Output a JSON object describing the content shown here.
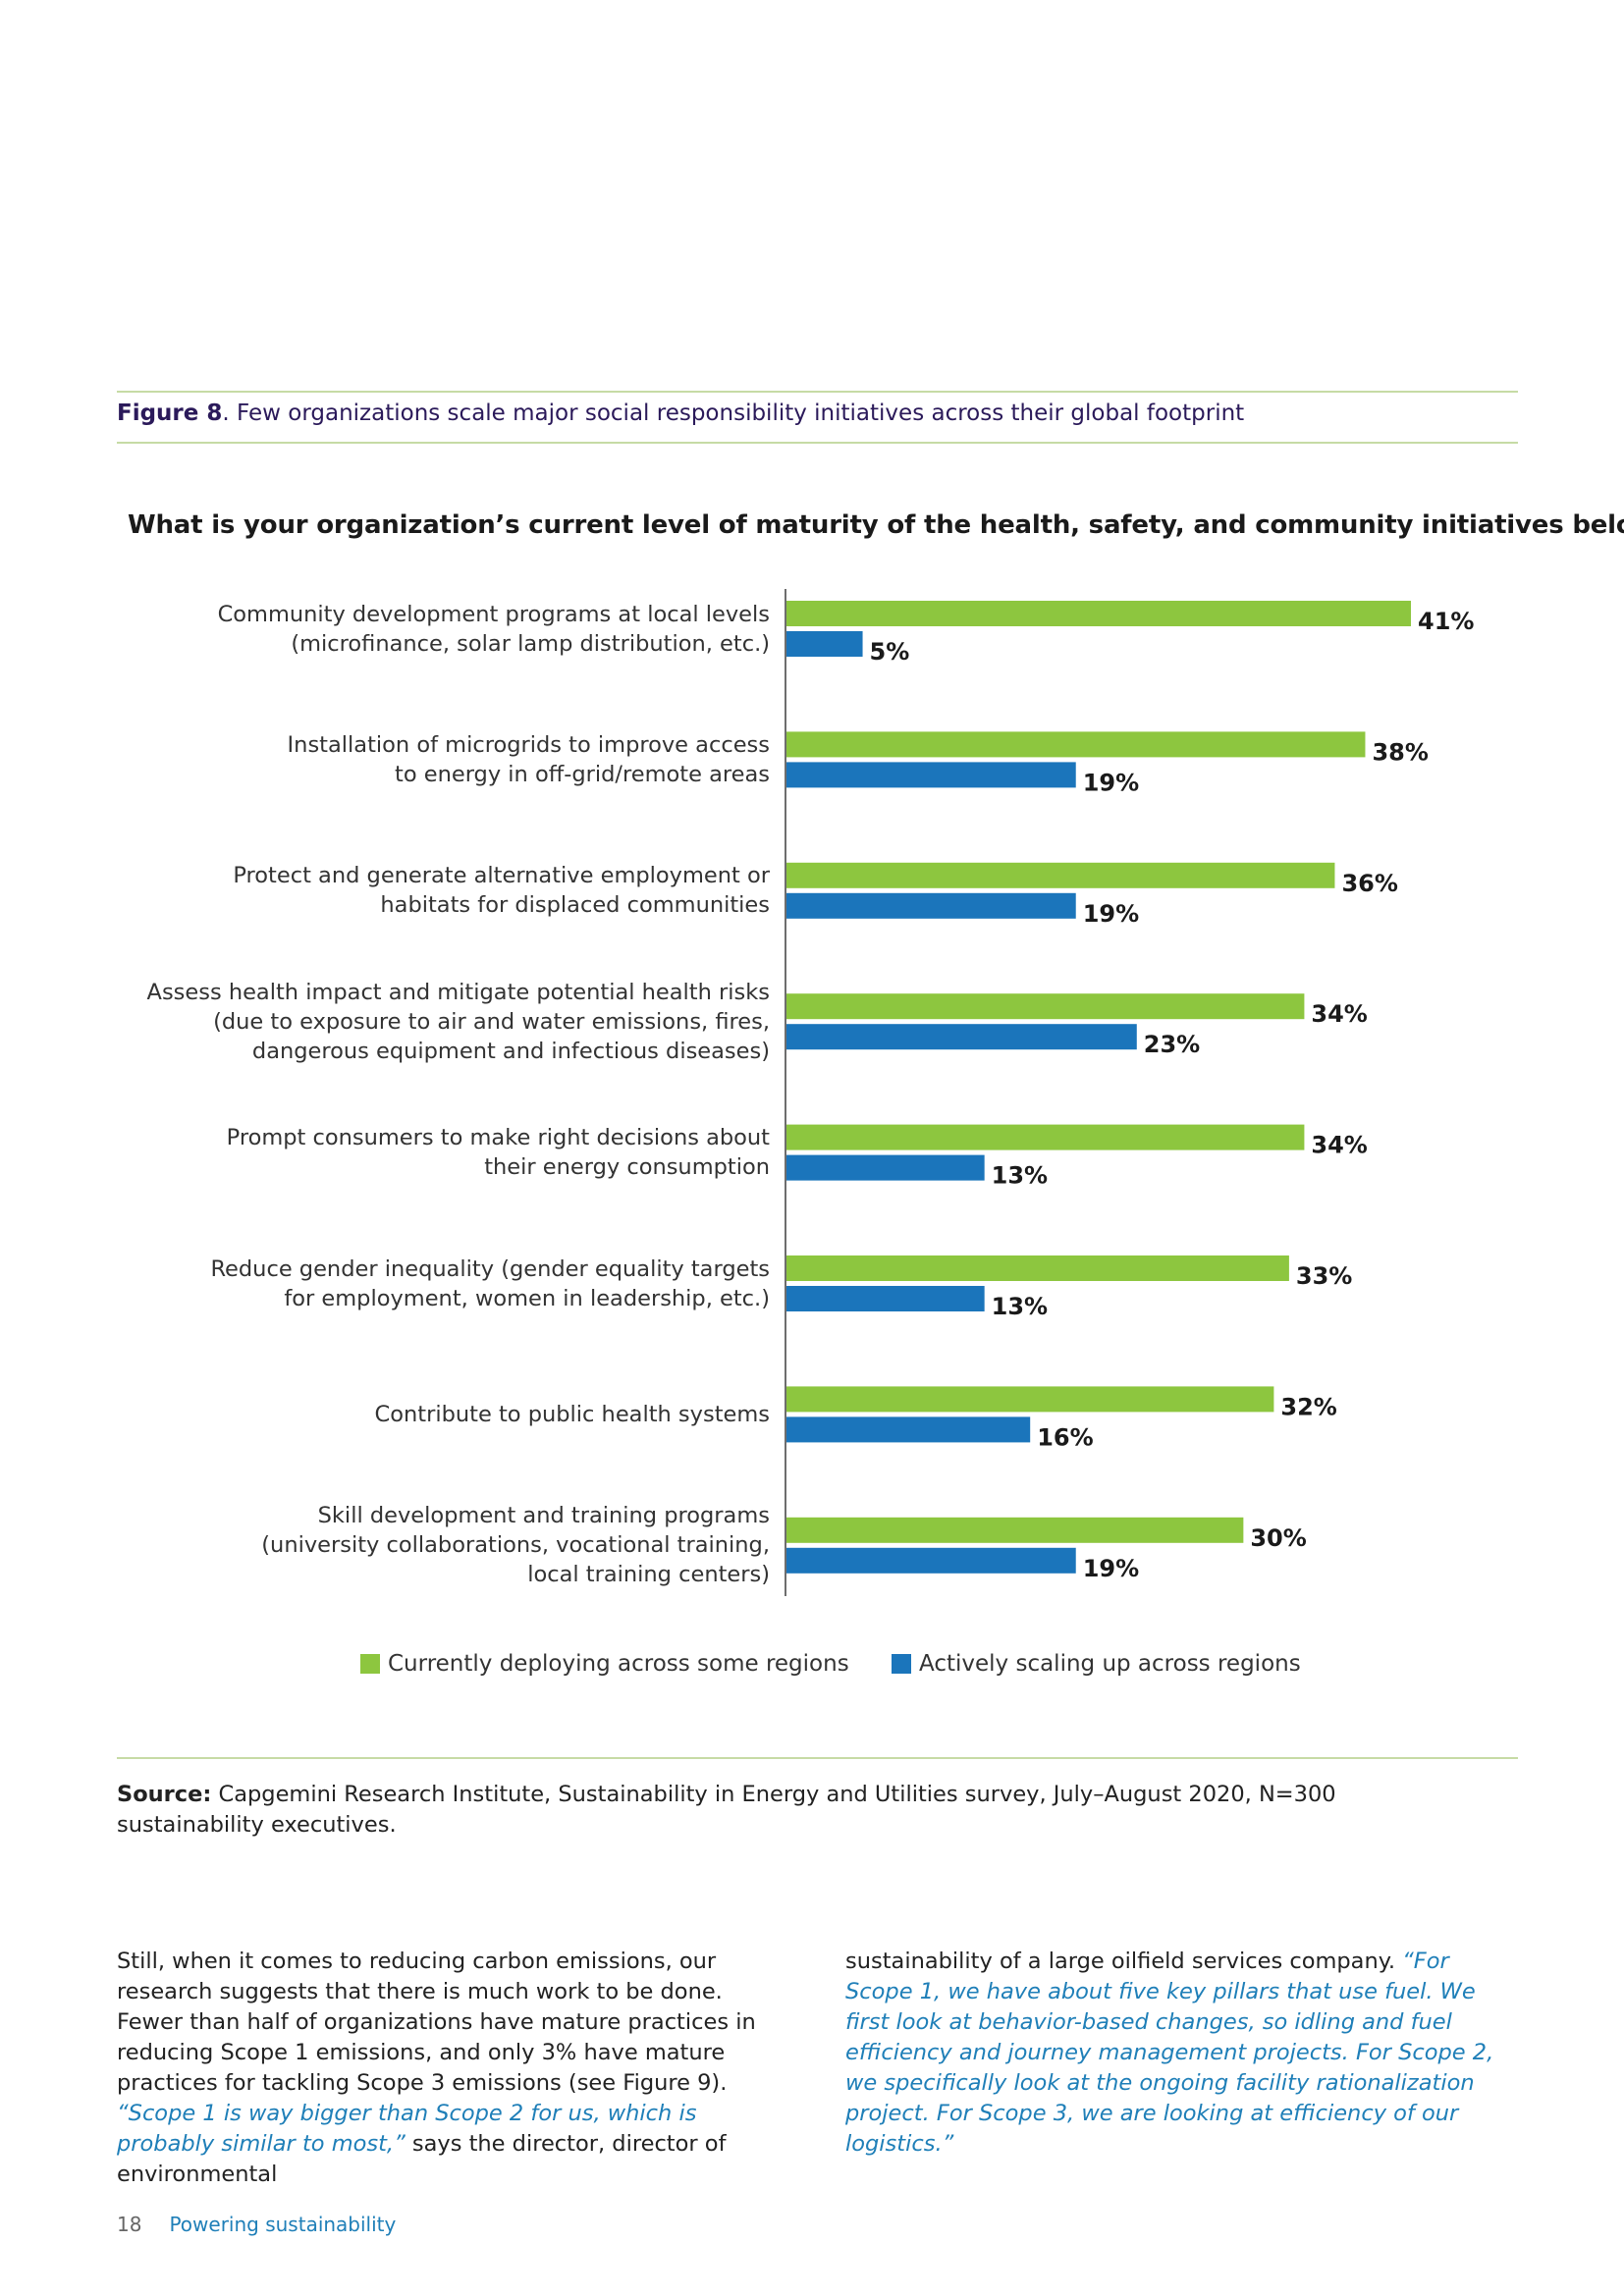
{
  "figure": {
    "label": "Figure 8",
    "caption": ". Few organizations scale major social responsibility initiatives across their global footprint"
  },
  "colors": {
    "green": "#8dc63f",
    "blue": "#1b75bb",
    "rule": "#c6dba5"
  },
  "chart_data": {
    "type": "bar",
    "orientation": "horizontal",
    "title": "What is your organization’s current level of maturity of the health, safety, and community initiatives below?",
    "categories": [
      "Community development programs at local levels\n(microfinance, solar lamp distribution, etc.)",
      "Installation of microgrids to improve access\nto energy in off-grid/remote areas",
      "Protect and generate alternative employment or\nhabitats for displaced communities",
      "Assess health impact and mitigate potential health risks\n(due to exposure to air and water emissions, fires,\ndangerous equipment and infectious diseases)",
      "Prompt consumers to make right decisions about\ntheir energy consumption",
      "Reduce gender inequality (gender equality targets\nfor employment, women in leadership, etc.)",
      "Contribute to public health systems",
      "Skill development and training programs\n(university collaborations, vocational training,\nlocal training centers)"
    ],
    "series": [
      {
        "name": "Currently deploying across some regions",
        "color": "#8dc63f",
        "values": [
          41,
          38,
          36,
          34,
          34,
          33,
          32,
          30
        ]
      },
      {
        "name": "Actively scaling up across regions",
        "color": "#1b75bb",
        "values": [
          5,
          19,
          19,
          23,
          13,
          13,
          16,
          19
        ]
      }
    ],
    "value_suffix": "%",
    "xlim": [
      0,
      41
    ],
    "legend_position": "bottom"
  },
  "source": {
    "label": "Source:",
    "text": " Capgemini Research Institute, Sustainability in Energy and Utilities survey, July–August 2020, N=300 sustainability executives."
  },
  "body": {
    "left_text": "Still, when it comes to reducing carbon emissions, our research suggests that there is much work to be done. Fewer than half of organizations have mature practices in reducing Scope 1 emissions, and only 3% have mature practices for tackling Scope 3 emissions (see Figure 9).",
    "left_quote": "“Scope 1 is way bigger than Scope 2 for us, which is probably similar to most,”",
    "left_tail": " says the director, director of environmental",
    "right_text": "sustainability of a large oilfield services company. ",
    "right_quote": "“For Scope 1, we have about five key pillars that use fuel. We first look at behavior-based changes, so idling and fuel efficiency and journey management projects. For Scope 2, we specifically look at the ongoing facility rationalization project. For Scope 3, we are looking at efficiency of our logistics.”"
  },
  "footer": {
    "page_number": "18",
    "title": "Powering sustainability"
  }
}
